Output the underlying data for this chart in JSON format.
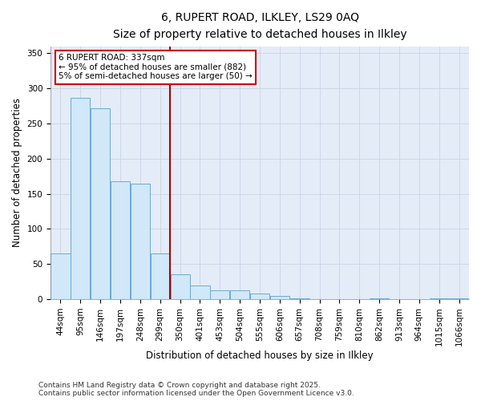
{
  "title_line1": "6, RUPERT ROAD, ILKLEY, LS29 0AQ",
  "title_line2": "Size of property relative to detached houses in Ilkley",
  "xlabel": "Distribution of detached houses by size in Ilkley",
  "ylabel": "Number of detached properties",
  "categories": [
    "44sqm",
    "95sqm",
    "146sqm",
    "197sqm",
    "248sqm",
    "299sqm",
    "350sqm",
    "401sqm",
    "453sqm",
    "504sqm",
    "555sqm",
    "606sqm",
    "657sqm",
    "708sqm",
    "759sqm",
    "810sqm",
    "862sqm",
    "913sqm",
    "964sqm",
    "1015sqm",
    "1066sqm"
  ],
  "values": [
    65,
    287,
    272,
    168,
    165,
    65,
    35,
    20,
    13,
    13,
    8,
    5,
    1,
    0,
    0,
    0,
    1,
    0,
    0,
    1,
    1
  ],
  "bar_color": "#d0e8f8",
  "bar_edge_color": "#6aaad4",
  "vline_x": 6.0,
  "vline_color": "#aa0000",
  "annotation_text": "6 RUPERT ROAD: 337sqm\n← 95% of detached houses are smaller (882)\n5% of semi-detached houses are larger (50) →",
  "annotation_box_color": "#ffffff",
  "annotation_box_edge": "#cc0000",
  "ylim": [
    0,
    360
  ],
  "yticks": [
    0,
    50,
    100,
    150,
    200,
    250,
    300,
    350
  ],
  "grid_color": "#c8d4e4",
  "background_color": "#e4ecf8",
  "footer_line1": "Contains HM Land Registry data © Crown copyright and database right 2025.",
  "footer_line2": "Contains public sector information licensed under the Open Government Licence v3.0.",
  "title_fontsize": 10,
  "subtitle_fontsize": 9,
  "axis_label_fontsize": 8.5,
  "tick_fontsize": 7.5,
  "annotation_fontsize": 7.5,
  "footer_fontsize": 6.5
}
